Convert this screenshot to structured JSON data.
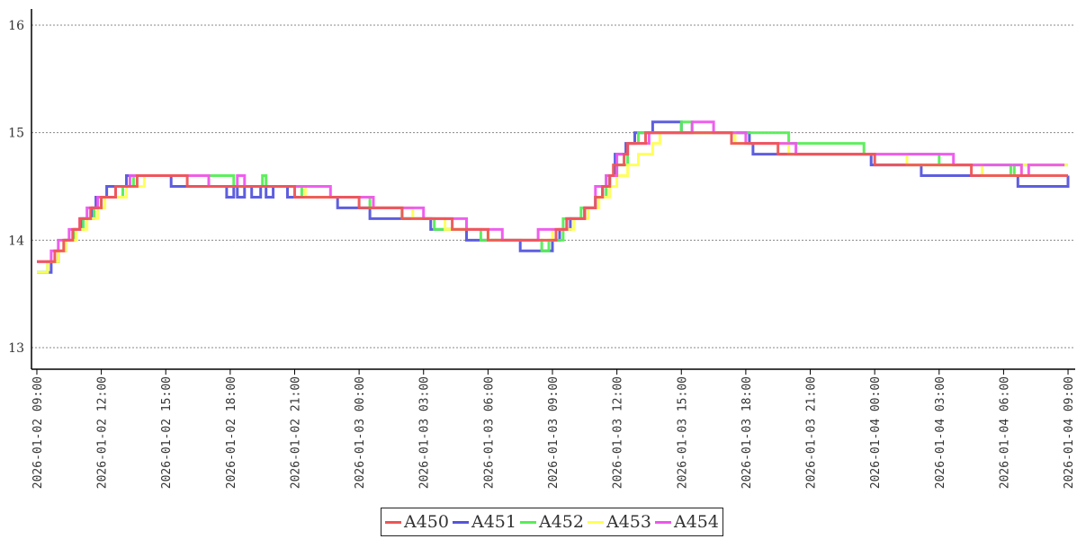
{
  "chart_data": {
    "type": "line",
    "title": "",
    "xlabel": "",
    "ylabel": "",
    "ylim": [
      12.8,
      16.15
    ],
    "yticks": [
      13,
      14,
      15,
      16
    ],
    "xlim": [
      "2026-01-02 08:45",
      "2026-01-04 09:20"
    ],
    "x_tick_labels": [
      "2026-01-02 09:00",
      "2026-01-02 12:00",
      "2026-01-02 15:00",
      "2026-01-02 18:00",
      "2026-01-02 21:00",
      "2026-01-03 00:00",
      "2026-01-03 03:00",
      "2026-01-03 06:00",
      "2026-01-03 09:00",
      "2026-01-03 12:00",
      "2026-01-03 15:00",
      "2026-01-03 18:00",
      "2026-01-03 21:00",
      "2026-01-04 00:00",
      "2026-01-04 03:00",
      "2026-01-04 06:00",
      "2026-01-04 09:00"
    ],
    "grid": "horizontal dotted",
    "legend_position": "bottom-center",
    "line_style": "step",
    "series": [
      {
        "name": "A450",
        "color": "#ee5555",
        "points": [
          [
            "2026-01-02 09:00",
            13.8
          ],
          [
            "2026-01-02 09:50",
            13.9
          ],
          [
            "2026-01-02 10:15",
            14.0
          ],
          [
            "2026-01-02 10:40",
            14.1
          ],
          [
            "2026-01-02 11:00",
            14.2
          ],
          [
            "2026-01-02 11:30",
            14.3
          ],
          [
            "2026-01-02 12:00",
            14.4
          ],
          [
            "2026-01-02 12:40",
            14.5
          ],
          [
            "2026-01-02 13:40",
            14.6
          ],
          [
            "2026-01-02 16:00",
            14.5
          ],
          [
            "2026-01-02 21:00",
            14.4
          ],
          [
            "2026-01-03 00:00",
            14.3
          ],
          [
            "2026-01-03 02:00",
            14.2
          ],
          [
            "2026-01-03 04:20",
            14.1
          ],
          [
            "2026-01-03 06:00",
            14.0
          ],
          [
            "2026-01-03 09:10",
            14.1
          ],
          [
            "2026-01-03 09:40",
            14.2
          ],
          [
            "2026-01-03 10:30",
            14.3
          ],
          [
            "2026-01-03 11:00",
            14.4
          ],
          [
            "2026-01-03 11:20",
            14.5
          ],
          [
            "2026-01-03 11:40",
            14.6
          ],
          [
            "2026-01-03 11:50",
            14.7
          ],
          [
            "2026-01-03 12:20",
            14.8
          ],
          [
            "2026-01-03 12:30",
            14.9
          ],
          [
            "2026-01-03 13:20",
            15.0
          ],
          [
            "2026-01-03 17:20",
            14.9
          ],
          [
            "2026-01-03 19:30",
            14.8
          ],
          [
            "2026-01-04 00:00",
            14.7
          ],
          [
            "2026-01-04 04:30",
            14.6
          ],
          [
            "2026-01-04 09:00",
            14.6
          ]
        ]
      },
      {
        "name": "A451",
        "color": "#5555dd",
        "points": [
          [
            "2026-01-02 09:00",
            13.7
          ],
          [
            "2026-01-02 09:40",
            13.8
          ],
          [
            "2026-01-02 10:00",
            13.9
          ],
          [
            "2026-01-02 10:20",
            14.0
          ],
          [
            "2026-01-02 10:45",
            14.1
          ],
          [
            "2026-01-02 11:05",
            14.2
          ],
          [
            "2026-01-02 11:35",
            14.3
          ],
          [
            "2026-01-02 11:45",
            14.4
          ],
          [
            "2026-01-02 12:15",
            14.5
          ],
          [
            "2026-01-02 13:10",
            14.6
          ],
          [
            "2026-01-02 15:15",
            14.5
          ],
          [
            "2026-01-02 17:50",
            14.4
          ],
          [
            "2026-01-02 18:10",
            14.5
          ],
          [
            "2026-01-02 18:20",
            14.4
          ],
          [
            "2026-01-02 18:40",
            14.5
          ],
          [
            "2026-01-02 19:00",
            14.4
          ],
          [
            "2026-01-02 19:25",
            14.5
          ],
          [
            "2026-01-02 19:40",
            14.4
          ],
          [
            "2026-01-02 20:00",
            14.5
          ],
          [
            "2026-01-02 20:40",
            14.4
          ],
          [
            "2026-01-02 23:00",
            14.3
          ],
          [
            "2026-01-03 00:30",
            14.2
          ],
          [
            "2026-01-03 03:20",
            14.1
          ],
          [
            "2026-01-03 05:00",
            14.0
          ],
          [
            "2026-01-03 07:30",
            13.9
          ],
          [
            "2026-01-03 09:00",
            14.0
          ],
          [
            "2026-01-03 09:20",
            14.1
          ],
          [
            "2026-01-03 09:50",
            14.2
          ],
          [
            "2026-01-03 10:30",
            14.3
          ],
          [
            "2026-01-03 11:00",
            14.4
          ],
          [
            "2026-01-03 11:20",
            14.5
          ],
          [
            "2026-01-03 11:40",
            14.6
          ],
          [
            "2026-01-03 11:55",
            14.8
          ],
          [
            "2026-01-03 12:25",
            14.9
          ],
          [
            "2026-01-03 12:50",
            15.0
          ],
          [
            "2026-01-03 13:40",
            15.1
          ],
          [
            "2026-01-03 15:00",
            15.0
          ],
          [
            "2026-01-03 18:10",
            14.9
          ],
          [
            "2026-01-03 18:20",
            14.8
          ],
          [
            "2026-01-03 19:40",
            14.8
          ],
          [
            "2026-01-03 23:50",
            14.7
          ],
          [
            "2026-01-04 02:10",
            14.6
          ],
          [
            "2026-01-04 06:40",
            14.5
          ],
          [
            "2026-01-04 09:00",
            14.6
          ]
        ]
      },
      {
        "name": "A452",
        "color": "#55ee55",
        "points": [
          [
            "2026-01-02 09:00",
            13.7
          ],
          [
            "2026-01-02 09:30",
            13.8
          ],
          [
            "2026-01-02 10:00",
            13.9
          ],
          [
            "2026-01-02 10:20",
            14.0
          ],
          [
            "2026-01-02 10:45",
            14.1
          ],
          [
            "2026-01-02 11:10",
            14.2
          ],
          [
            "2026-01-02 11:40",
            14.3
          ],
          [
            "2026-01-02 12:00",
            14.4
          ],
          [
            "2026-01-02 13:00",
            14.5
          ],
          [
            "2026-01-02 13:30",
            14.6
          ],
          [
            "2026-01-02 18:10",
            14.5
          ],
          [
            "2026-01-02 19:30",
            14.6
          ],
          [
            "2026-01-02 19:40",
            14.5
          ],
          [
            "2026-01-02 21:20",
            14.4
          ],
          [
            "2026-01-03 00:30",
            14.3
          ],
          [
            "2026-01-03 02:00",
            14.2
          ],
          [
            "2026-01-03 03:30",
            14.1
          ],
          [
            "2026-01-03 05:40",
            14.0
          ],
          [
            "2026-01-03 08:30",
            13.9
          ],
          [
            "2026-01-03 08:50",
            14.0
          ],
          [
            "2026-01-03 09:30",
            14.2
          ],
          [
            "2026-01-03 10:20",
            14.3
          ],
          [
            "2026-01-03 11:00",
            14.4
          ],
          [
            "2026-01-03 11:30",
            14.6
          ],
          [
            "2026-01-03 12:00",
            14.7
          ],
          [
            "2026-01-03 12:30",
            14.9
          ],
          [
            "2026-01-03 13:00",
            15.0
          ],
          [
            "2026-01-03 15:00",
            15.1
          ],
          [
            "2026-01-03 15:30",
            15.0
          ],
          [
            "2026-01-03 20:00",
            14.9
          ],
          [
            "2026-01-03 23:30",
            14.8
          ],
          [
            "2026-01-04 03:00",
            14.7
          ],
          [
            "2026-01-04 06:20",
            14.6
          ],
          [
            "2026-01-04 06:30",
            14.7
          ],
          [
            "2026-01-04 09:00",
            14.7
          ]
        ]
      },
      {
        "name": "A453",
        "color": "#ffff55",
        "points": [
          [
            "2026-01-02 09:00",
            13.7
          ],
          [
            "2026-01-02 09:30",
            13.8
          ],
          [
            "2026-01-02 10:00",
            13.9
          ],
          [
            "2026-01-02 10:20",
            14.0
          ],
          [
            "2026-01-02 10:50",
            14.1
          ],
          [
            "2026-01-02 11:20",
            14.2
          ],
          [
            "2026-01-02 11:50",
            14.3
          ],
          [
            "2026-01-02 12:10",
            14.4
          ],
          [
            "2026-01-02 13:10",
            14.5
          ],
          [
            "2026-01-02 14:00",
            14.6
          ],
          [
            "2026-01-02 17:00",
            14.5
          ],
          [
            "2026-01-02 21:30",
            14.4
          ],
          [
            "2026-01-03 00:40",
            14.3
          ],
          [
            "2026-01-03 02:30",
            14.2
          ],
          [
            "2026-01-03 04:00",
            14.1
          ],
          [
            "2026-01-03 06:00",
            14.0
          ],
          [
            "2026-01-03 09:00",
            14.1
          ],
          [
            "2026-01-03 10:00",
            14.2
          ],
          [
            "2026-01-03 10:40",
            14.3
          ],
          [
            "2026-01-03 11:10",
            14.4
          ],
          [
            "2026-01-03 11:40",
            14.5
          ],
          [
            "2026-01-03 12:00",
            14.6
          ],
          [
            "2026-01-03 12:30",
            14.7
          ],
          [
            "2026-01-03 13:00",
            14.8
          ],
          [
            "2026-01-03 13:40",
            14.9
          ],
          [
            "2026-01-03 14:00",
            15.0
          ],
          [
            "2026-01-03 17:30",
            14.9
          ],
          [
            "2026-01-03 20:00",
            14.8
          ],
          [
            "2026-01-04 01:30",
            14.7
          ],
          [
            "2026-01-04 05:00",
            14.6
          ],
          [
            "2026-01-04 06:50",
            14.7
          ],
          [
            "2026-01-04 09:00",
            14.7
          ]
        ]
      },
      {
        "name": "A454",
        "color": "#ee55ee",
        "points": [
          [
            "2026-01-02 09:00",
            13.8
          ],
          [
            "2026-01-02 09:40",
            13.9
          ],
          [
            "2026-01-02 10:00",
            14.0
          ],
          [
            "2026-01-02 10:30",
            14.1
          ],
          [
            "2026-01-02 11:00",
            14.2
          ],
          [
            "2026-01-02 11:20",
            14.3
          ],
          [
            "2026-01-02 11:50",
            14.4
          ],
          [
            "2026-01-02 12:40",
            14.5
          ],
          [
            "2026-01-02 13:20",
            14.6
          ],
          [
            "2026-01-02 17:00",
            14.5
          ],
          [
            "2026-01-02 18:20",
            14.6
          ],
          [
            "2026-01-02 18:40",
            14.5
          ],
          [
            "2026-01-02 22:40",
            14.4
          ],
          [
            "2026-01-03 00:40",
            14.3
          ],
          [
            "2026-01-03 03:00",
            14.2
          ],
          [
            "2026-01-03 05:00",
            14.1
          ],
          [
            "2026-01-03 06:40",
            14.0
          ],
          [
            "2026-01-03 08:20",
            14.1
          ],
          [
            "2026-01-03 09:40",
            14.2
          ],
          [
            "2026-01-03 10:30",
            14.3
          ],
          [
            "2026-01-03 11:00",
            14.5
          ],
          [
            "2026-01-03 11:30",
            14.6
          ],
          [
            "2026-01-03 12:00",
            14.8
          ],
          [
            "2026-01-03 12:30",
            14.9
          ],
          [
            "2026-01-03 13:30",
            15.0
          ],
          [
            "2026-01-03 15:30",
            15.1
          ],
          [
            "2026-01-03 16:30",
            15.0
          ],
          [
            "2026-01-03 18:00",
            14.9
          ],
          [
            "2026-01-03 20:20",
            14.8
          ],
          [
            "2026-01-04 02:00",
            14.8
          ],
          [
            "2026-01-04 03:40",
            14.7
          ],
          [
            "2026-01-04 06:50",
            14.6
          ],
          [
            "2026-01-04 07:10",
            14.7
          ],
          [
            "2026-01-04 08:50",
            14.7
          ]
        ]
      }
    ]
  }
}
